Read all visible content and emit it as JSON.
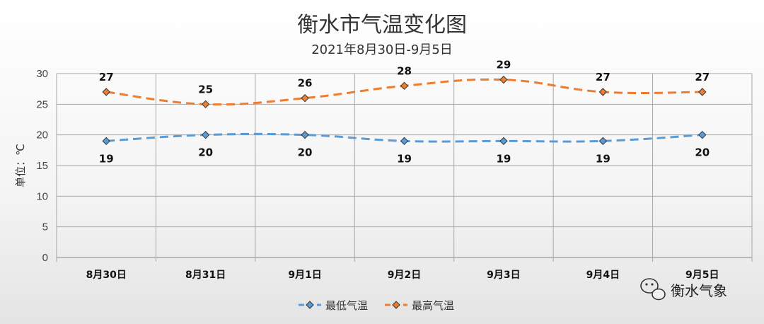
{
  "chart_data": {
    "type": "line",
    "title": "衡水市气温变化图",
    "subtitle": "2021年8月30日-9月5日",
    "xlabel": "",
    "ylabel": "单位：℃",
    "categories": [
      "8月30日",
      "8月31日",
      "9月1日",
      "9月2日",
      "9月3日",
      "9月4日",
      "9月5日"
    ],
    "series": [
      {
        "name": "最低气温",
        "values": [
          19,
          20,
          20,
          19,
          19,
          19,
          20
        ],
        "color": "#5b9bd5"
      },
      {
        "name": "最高气温",
        "values": [
          27,
          25,
          26,
          28,
          29,
          27,
          27
        ],
        "color": "#ed7d31"
      }
    ],
    "ylim": [
      0,
      30
    ],
    "yticks": [
      0,
      5,
      10,
      15,
      20,
      25,
      30
    ],
    "grid": true,
    "legend_position": "bottom-center",
    "line_style": "dashed",
    "marker": "diamond"
  },
  "watermark": {
    "text": "衡水气象",
    "icon": "wechat-icon"
  }
}
